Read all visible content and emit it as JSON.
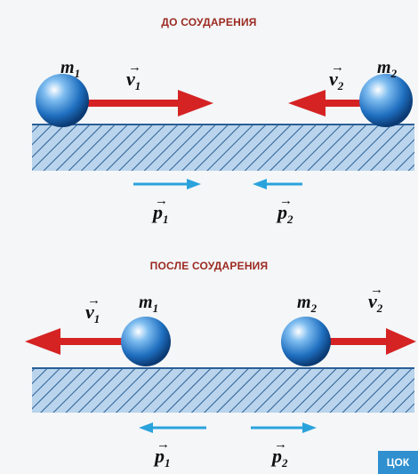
{
  "headings": {
    "before": "ДО СОУДАРЕНИЯ",
    "after": "ПОСЛЕ СОУДАРЕНИЯ"
  },
  "symbols": {
    "mass": "m",
    "velocity": "v",
    "momentum": "p",
    "vector_arrow": "→",
    "index_1": "1",
    "index_2": "2"
  },
  "badge": "ЦОК",
  "colors": {
    "heading": "#9b2a20",
    "ball": "#1f6fc0",
    "velocity_arrow": "#d52323",
    "momentum_arrow": "#2aa3dc",
    "floor_fill": "#b9d4ec",
    "floor_hatch": "#2b5f96"
  }
}
